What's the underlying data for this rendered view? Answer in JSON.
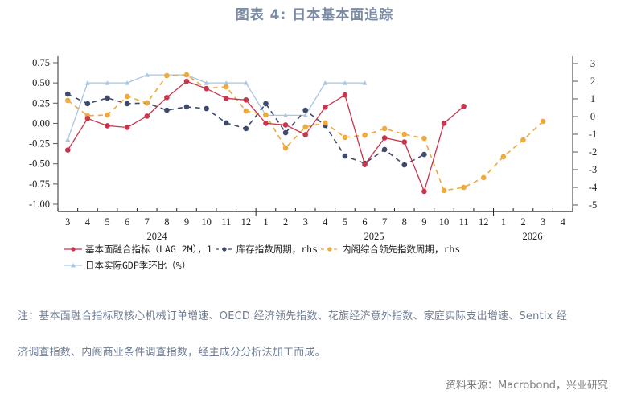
{
  "header": {
    "title": "图表 4:  日本基本面追踪"
  },
  "legend": {
    "row1": [
      {
        "label": "基本面融合指标（LAG 2M），1",
        "color": "#c8354d",
        "style": "solid",
        "marker": "circle"
      },
      {
        "label": "库存指数周期，rhs",
        "color": "#3e4a6a",
        "style": "dashed",
        "marker": "circle"
      },
      {
        "label": "内阁综合领先指数周期，rhs",
        "color": "#f0a93b",
        "style": "dashed",
        "marker": "circle"
      }
    ],
    "row2": [
      {
        "label": "日本实际GDP季环比（%）",
        "color": "#a9c6e2",
        "style": "solid",
        "marker": "triangle"
      }
    ]
  },
  "footer": {
    "note_line1": "注：基本面融合指标取核心机械订单增速、OECD 经济领先指数、花旗经济意外指数、家庭实际支出增速、Sentix 经",
    "note_line2": "济调查指数、内阁商业条件调查指数，经主成分分析法加工而成。",
    "source": "资料来源：Macrobond，兴业研究"
  },
  "chart_data": {
    "type": "line",
    "title": "图表 4:  日本基本面追踪",
    "xlabel": "",
    "ylabel": "",
    "x": [
      "2024-03",
      "2024-04",
      "2024-05",
      "2024-06",
      "2024-07",
      "2024-08",
      "2024-09",
      "2024-10",
      "2024-11",
      "2024-12",
      "2025-01",
      "2025-02",
      "2025-03",
      "2025-04",
      "2025-05",
      "2025-06",
      "2025-07",
      "2025-08",
      "2025-09",
      "2025-10",
      "2025-11",
      "2025-12",
      "2026-01",
      "2026-02",
      "2026-03",
      "2026-04"
    ],
    "x_tick_labels": [
      "3",
      "4",
      "5",
      "6",
      "7",
      "8",
      "9",
      "10",
      "11",
      "12",
      "1",
      "2",
      "3",
      "4",
      "5",
      "6",
      "7",
      "8",
      "9",
      "10",
      "11",
      "12",
      "1",
      "2",
      "3",
      "4"
    ],
    "x_year_labels": [
      {
        "label": "2024",
        "x": 195
      },
      {
        "label": "2025",
        "x": 465
      },
      {
        "label": "2026",
        "x": 662
      }
    ],
    "y_left": {
      "range": [
        -1.0,
        0.75
      ],
      "ticks": [
        "0.75",
        "0.50",
        "0.25",
        "0.00",
        "-0.25",
        "-0.50",
        "-0.75",
        "-1.00"
      ]
    },
    "y_right": {
      "range": [
        -5,
        3
      ],
      "ticks": [
        "3",
        "2",
        "1",
        "0",
        "-1",
        "-2",
        "-3",
        "-4",
        "-5"
      ]
    },
    "grid": false,
    "legend_position": "bottom",
    "series": [
      {
        "name": "基本面融合指标（LAG 2M），1",
        "axis": "left",
        "color": "#c8354d",
        "style": "solid",
        "marker": "circle",
        "values": [
          -0.33,
          0.06,
          -0.03,
          -0.05,
          0.09,
          0.32,
          0.52,
          0.43,
          0.31,
          0.29,
          0.0,
          -0.02,
          -0.14,
          0.2,
          0.35,
          -0.51,
          -0.18,
          -0.23,
          -0.84,
          0.0,
          0.21,
          null,
          null,
          null,
          null,
          null
        ]
      },
      {
        "name": "库存指数周期，rhs",
        "axis": "right",
        "color": "#3e4a6a",
        "style": "dashed",
        "marker": "circle",
        "values": [
          1.27,
          0.73,
          1.05,
          0.73,
          0.77,
          0.36,
          0.55,
          0.45,
          -0.36,
          -0.68,
          0.73,
          -0.91,
          0.36,
          -0.5,
          -2.23,
          -2.64,
          -1.86,
          -2.73,
          -2.14,
          null,
          null,
          null,
          null,
          null,
          null,
          null
        ]
      },
      {
        "name": "内阁综合领先指数周期，rhs",
        "axis": "right",
        "color": "#f0a93b",
        "style": "dashed",
        "marker": "circle",
        "values": [
          0.91,
          0.05,
          0.09,
          1.14,
          0.77,
          2.32,
          2.36,
          1.59,
          1.68,
          0.32,
          0.09,
          -1.77,
          -0.59,
          -0.36,
          -1.18,
          -1.05,
          -0.68,
          -1.0,
          -1.23,
          -4.18,
          -4.0,
          -3.45,
          -2.27,
          -1.32,
          -0.27,
          null
        ]
      },
      {
        "name": "日本实际GDP季环比（%）",
        "axis": "left",
        "color": "#a9c6e2",
        "style": "solid",
        "marker": "triangle",
        "values": [
          -0.2,
          0.5,
          0.5,
          0.5,
          0.6,
          0.6,
          0.6,
          0.5,
          0.5,
          0.5,
          0.1,
          0.1,
          0.1,
          0.5,
          0.5,
          0.5,
          null,
          null,
          null,
          null,
          null,
          null,
          null,
          null,
          null,
          null
        ]
      }
    ]
  }
}
